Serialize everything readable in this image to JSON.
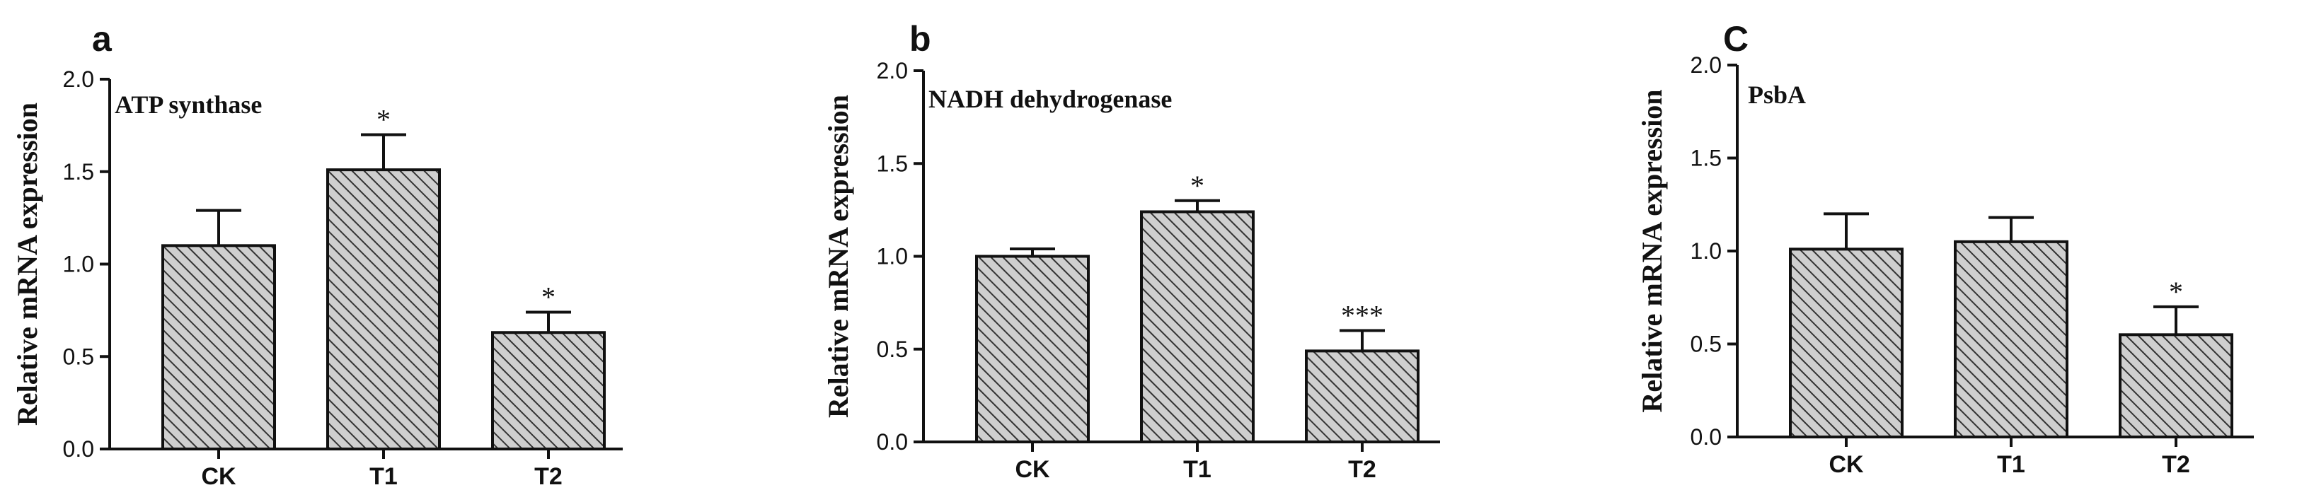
{
  "chart_data": [
    {
      "type": "bar",
      "panel": "a",
      "title": "ATP synthase",
      "xlabel": "",
      "ylabel": "Relative mRNA expression",
      "ylim": [
        0,
        2.0
      ],
      "yticks": [
        "0.0",
        "0.5",
        "1.0",
        "1.5",
        "2.0"
      ],
      "categories": [
        "CK",
        "T1",
        "T2"
      ],
      "values": [
        1.1,
        1.51,
        0.63
      ],
      "errors": [
        0.19,
        0.19,
        0.11
      ],
      "significance": [
        "",
        "*",
        "*"
      ]
    },
    {
      "type": "bar",
      "panel": "b",
      "title": "NADH dehydrogenase",
      "xlabel": "",
      "ylabel": "Relative mRNA expression",
      "ylim": [
        0,
        2.0
      ],
      "yticks": [
        "0.0",
        "0.5",
        "1.0",
        "1.5",
        "2.0"
      ],
      "categories": [
        "CK",
        "T1",
        "T2"
      ],
      "values": [
        1.0,
        1.24,
        0.49
      ],
      "errors": [
        0.04,
        0.06,
        0.11
      ],
      "significance": [
        "",
        "*",
        "***"
      ]
    },
    {
      "type": "bar",
      "panel": "C",
      "title": "PsbA",
      "xlabel": "",
      "ylabel": "Relative mRNA expression",
      "ylim": [
        0,
        2.0
      ],
      "yticks": [
        "0.0",
        "0.5",
        "1.0",
        "1.5",
        "2.0"
      ],
      "categories": [
        "CK",
        "T1",
        "T2"
      ],
      "values": [
        1.01,
        1.05,
        0.55
      ],
      "errors": [
        0.19,
        0.13,
        0.15
      ],
      "significance": [
        "",
        "",
        "*"
      ]
    }
  ]
}
